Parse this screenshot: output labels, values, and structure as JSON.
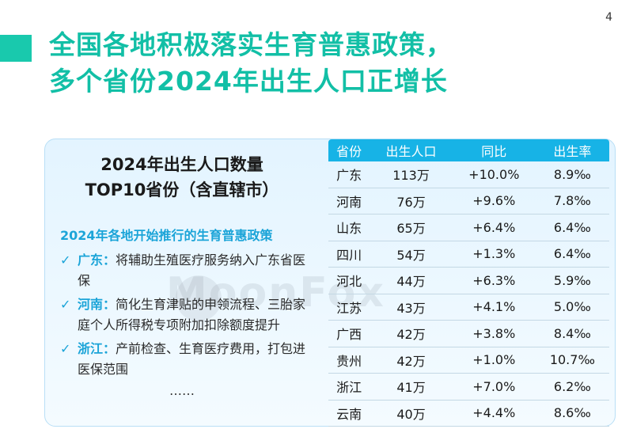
{
  "page_number": "4",
  "title": {
    "line1": "全国各地积极落实生育普惠政策，",
    "line2": "多个省份2024年出生人口正增长"
  },
  "subtitle": {
    "line1": "2024年出生人口数量",
    "line2": "TOP10省份（含直辖市）"
  },
  "watermark": "MoonFox",
  "policies": {
    "heading": "2024年各地开始推行的生育普惠政策",
    "items": [
      {
        "province": "广东：",
        "text": "将辅助生殖医疗服务纳入广东省医保"
      },
      {
        "province": "河南：",
        "text": "简化生育津贴的申领流程、三胎家庭个人所得税专项附加扣除额度提升"
      },
      {
        "province": "浙江：",
        "text": "产前检查、生育医疗费用，打包进医保范围"
      }
    ],
    "ellipsis": "……"
  },
  "table": {
    "headers": [
      "省份",
      "出生人口",
      "同比",
      "出生率"
    ],
    "rows": [
      [
        "广东",
        "113万",
        "+10.0%",
        "8.9‰"
      ],
      [
        "河南",
        "76万",
        "+9.6%",
        "7.8‰"
      ],
      [
        "山东",
        "65万",
        "+6.4%",
        "6.4‰"
      ],
      [
        "四川",
        "54万",
        "+1.3%",
        "6.4‰"
      ],
      [
        "河北",
        "44万",
        "+6.3%",
        "5.9‰"
      ],
      [
        "江苏",
        "43万",
        "+4.1%",
        "5.0‰"
      ],
      [
        "广西",
        "42万",
        "+3.8%",
        "8.4‰"
      ],
      [
        "贵州",
        "42万",
        "+1.0%",
        "10.7‰"
      ],
      [
        "浙江",
        "41万",
        "+7.0%",
        "6.2‰"
      ],
      [
        "云南",
        "40万",
        "+4.4%",
        "8.6‰"
      ]
    ]
  },
  "colors": {
    "accent": "#19c9ad",
    "table_header": "#17b3e6",
    "policy_blue": "#1ba4d8"
  }
}
